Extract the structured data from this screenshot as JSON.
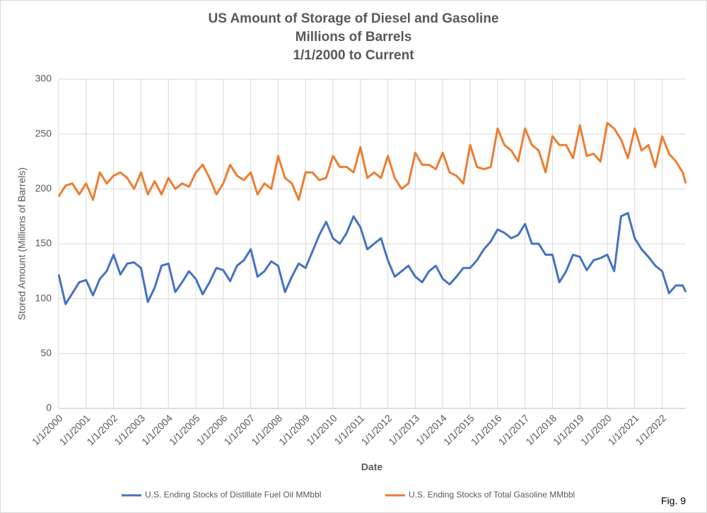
{
  "chart_data": {
    "type": "line",
    "title": [
      "US Amount of Storage of Diesel and Gasoline",
      "Millions of Barrels",
      "1/1/2000 to Current"
    ],
    "xlabel": "Date",
    "ylabel": "Stored Amount (Millions of Barrels)",
    "note": "Fig. 9",
    "x": [
      2000,
      2000.25,
      2000.5,
      2000.75,
      2001,
      2001.25,
      2001.5,
      2001.75,
      2002,
      2002.25,
      2002.5,
      2002.75,
      2003,
      2003.25,
      2003.5,
      2003.75,
      2004,
      2004.25,
      2004.5,
      2004.75,
      2005,
      2005.25,
      2005.5,
      2005.75,
      2006,
      2006.25,
      2006.5,
      2006.75,
      2007,
      2007.25,
      2007.5,
      2007.75,
      2008,
      2008.25,
      2008.5,
      2008.75,
      2009,
      2009.25,
      2009.5,
      2009.75,
      2010,
      2010.25,
      2010.5,
      2010.75,
      2011,
      2011.25,
      2011.5,
      2011.75,
      2012,
      2012.25,
      2012.5,
      2012.75,
      2013,
      2013.25,
      2013.5,
      2013.75,
      2014,
      2014.25,
      2014.5,
      2014.75,
      2015,
      2015.25,
      2015.5,
      2015.75,
      2016,
      2016.25,
      2016.5,
      2016.75,
      2017,
      2017.25,
      2017.5,
      2017.75,
      2018,
      2018.25,
      2018.5,
      2018.75,
      2019,
      2019.25,
      2019.5,
      2019.75,
      2020,
      2020.25,
      2020.5,
      2020.75,
      2021,
      2021.25,
      2021.5,
      2021.75,
      2022,
      2022.25,
      2022.5,
      2022.75,
      2022.86
    ],
    "series": [
      {
        "name": "U.S. Ending Stocks of Distillate Fuel Oil MMbbl",
        "color": "#4472c4",
        "values": [
          122,
          95,
          105,
          115,
          117,
          103,
          118,
          125,
          140,
          122,
          132,
          133,
          128,
          97,
          110,
          130,
          132,
          106,
          115,
          125,
          118,
          104,
          115,
          128,
          126,
          116,
          130,
          135,
          145,
          120,
          125,
          134,
          130,
          106,
          120,
          132,
          128,
          143,
          158,
          170,
          155,
          150,
          160,
          175,
          165,
          145,
          150,
          155,
          135,
          120,
          125,
          130,
          120,
          115,
          125,
          130,
          118,
          113,
          120,
          128,
          128,
          135,
          145,
          152,
          163,
          160,
          155,
          158,
          168,
          150,
          150,
          140,
          140,
          115,
          125,
          140,
          138,
          126,
          135,
          137,
          140,
          125,
          175,
          178,
          155,
          145,
          138,
          130,
          125,
          105,
          112,
          112,
          106
        ]
      },
      {
        "name": "U.S. Ending Stocks of Total Gasoline MMbbl",
        "color": "#ed7d31",
        "values": [
          193,
          203,
          205,
          195,
          205,
          190,
          215,
          205,
          212,
          215,
          210,
          200,
          215,
          195,
          207,
          195,
          210,
          200,
          205,
          202,
          215,
          222,
          210,
          195,
          205,
          222,
          212,
          208,
          215,
          195,
          205,
          200,
          230,
          210,
          205,
          190,
          215,
          215,
          208,
          210,
          230,
          220,
          220,
          215,
          238,
          210,
          215,
          210,
          230,
          210,
          200,
          205,
          233,
          222,
          222,
          218,
          233,
          215,
          212,
          205,
          240,
          220,
          218,
          220,
          255,
          240,
          235,
          225,
          255,
          240,
          235,
          215,
          248,
          240,
          240,
          228,
          258,
          230,
          232,
          225,
          260,
          255,
          245,
          228,
          255,
          235,
          240,
          220,
          248,
          232,
          225,
          215,
          205
        ]
      }
    ],
    "xlim": [
      2000,
      2022.86
    ],
    "xticks": [
      {
        "value": 2000,
        "label": "1/1/2000"
      },
      {
        "value": 2001,
        "label": "1/1/2001"
      },
      {
        "value": 2002,
        "label": "1/1/2002"
      },
      {
        "value": 2003,
        "label": "1/1/2003"
      },
      {
        "value": 2004,
        "label": "1/1/2004"
      },
      {
        "value": 2005,
        "label": "1/1/2005"
      },
      {
        "value": 2006,
        "label": "1/1/2006"
      },
      {
        "value": 2007,
        "label": "1/1/2007"
      },
      {
        "value": 2008,
        "label": "1/1/2008"
      },
      {
        "value": 2009,
        "label": "1/1/2009"
      },
      {
        "value": 2010,
        "label": "1/1/2010"
      },
      {
        "value": 2011,
        "label": "1/1/2011"
      },
      {
        "value": 2012,
        "label": "1/1/2012"
      },
      {
        "value": 2013,
        "label": "1/1/2013"
      },
      {
        "value": 2014,
        "label": "1/1/2014"
      },
      {
        "value": 2015,
        "label": "1/1/2015"
      },
      {
        "value": 2016,
        "label": "1/1/2016"
      },
      {
        "value": 2017,
        "label": "1/1/2017"
      },
      {
        "value": 2018,
        "label": "1/1/2018"
      },
      {
        "value": 2019,
        "label": "1/1/2019"
      },
      {
        "value": 2020,
        "label": "1/1/2020"
      },
      {
        "value": 2021,
        "label": "1/1/2021"
      },
      {
        "value": 2022,
        "label": "1/1/2022"
      }
    ],
    "ylim": [
      0,
      300
    ],
    "yticks": [
      0,
      50,
      100,
      150,
      200,
      250,
      300
    ],
    "grid": true,
    "legend": "bottom"
  }
}
